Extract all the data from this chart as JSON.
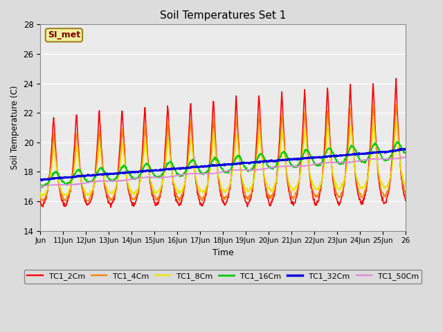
{
  "title": "Soil Temperatures Set 1",
  "xlabel": "Time",
  "ylabel": "Soil Temperature (C)",
  "ylim": [
    14,
    28
  ],
  "xlim": [
    0,
    16
  ],
  "bg_color": "#dcdcdc",
  "plot_bg": "#ebebeb",
  "annotation_text": "SI_met",
  "annotation_bg": "#f0f0a0",
  "annotation_border": "#a08020",
  "annotation_text_color": "#800000",
  "xtick_labels": [
    "Jun",
    "11Jun",
    "12Jun",
    "13Jun",
    "14Jun",
    "15Jun",
    "16Jun",
    "17Jun",
    "18Jun",
    "19Jun",
    "20Jun",
    "21Jun",
    "22Jun",
    "23Jun",
    "24Jun",
    "25Jun",
    "26"
  ],
  "legend_labels": [
    "TC1_2Cm",
    "TC1_4Cm",
    "TC1_8Cm",
    "TC1_16Cm",
    "TC1_32Cm",
    "TC1_50Cm"
  ],
  "line_colors": [
    "#ff0000",
    "#ff8000",
    "#e8e800",
    "#00cc00",
    "#0000dd",
    "#dd88dd"
  ],
  "line_widths": [
    1.2,
    1.2,
    1.2,
    1.5,
    2.0,
    1.2
  ],
  "grid_color": "#ffffff",
  "n_points": 960
}
